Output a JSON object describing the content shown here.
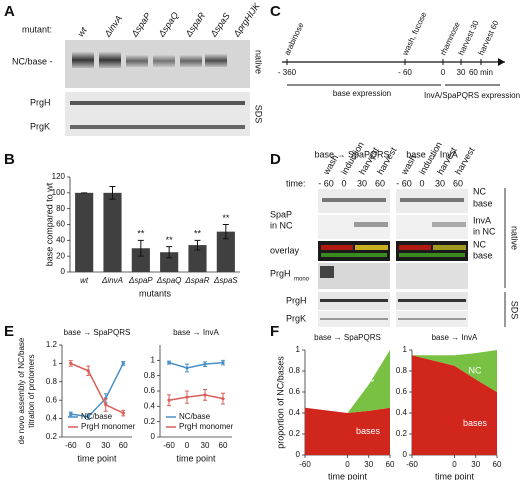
{
  "panels": {
    "a": "A",
    "b": "B",
    "c": "C",
    "d": "D",
    "e": "E",
    "f": "F"
  },
  "panel_a": {
    "mutant_label": "mutant:",
    "lanes": [
      "wt",
      "ΔinvA",
      "ΔspaP",
      "ΔspaQ",
      "ΔspaR",
      "ΔspaS",
      "ΔprgHIJK"
    ],
    "band_label": "NC/base -",
    "blots": [
      "PrgH",
      "PrgK"
    ],
    "gel_labels": [
      "native",
      "SDS"
    ]
  },
  "panel_c": {
    "timeline": [
      {
        "time": "- 360",
        "event": "arabinose"
      },
      {
        "time": "- 60",
        "event": "wash, fucose"
      },
      {
        "time": "0",
        "event": "rhamnose"
      },
      {
        "time": "30",
        "event": "harvest 30"
      },
      {
        "time": "60 min",
        "event": "harvest 60"
      }
    ],
    "phases": [
      "base expression",
      "InvA/SpaPQRS expression"
    ]
  },
  "panel_d": {
    "titles": [
      "base → SpaPQRS",
      "base → InvA"
    ],
    "lanes": [
      "wash",
      "induction",
      "harvest",
      "harvest"
    ],
    "time_label": "time:",
    "times": [
      "- 60",
      "0",
      "30",
      "60"
    ],
    "left_labels": [
      "SpaP",
      "in NC",
      "overlay",
      "PrgH",
      "mono",
      "PrgH",
      "PrgK"
    ],
    "right_labels": [
      "NC",
      "base",
      "InvA",
      "in NC",
      "NC",
      "base"
    ],
    "gel_labels": [
      "native",
      "SDS"
    ]
  },
  "chart_data": [
    {
      "type": "bar",
      "ylabel": "base compared to wt",
      "xlabel": "mutants",
      "categories": [
        "wt",
        "ΔinvA",
        "ΔspaP",
        "ΔspaQ",
        "ΔspaR",
        "ΔspaS"
      ],
      "values": [
        100,
        100,
        30,
        25,
        34,
        51
      ],
      "errors": [
        0,
        8,
        10,
        7,
        6,
        9
      ],
      "significance": [
        null,
        null,
        "**",
        "**",
        "**",
        "**"
      ],
      "color": "#404040",
      "ylim": [
        0,
        120
      ],
      "yticks": [
        0,
        20,
        40,
        60,
        80,
        100,
        120
      ]
    },
    {
      "type": "line",
      "title": "base → SpaPQRS",
      "ylabel": [
        "de novo assembly of NC/base",
        "titration of protomers"
      ],
      "xlabel": "time point",
      "categories": [
        "-60",
        "0",
        "30",
        "60"
      ],
      "ylim": [
        0.2,
        1.2
      ],
      "yticks": [
        0.2,
        0.4,
        0.6,
        0.8,
        1,
        1.2
      ],
      "series": [
        {
          "name": "NC/base",
          "color": "#4a90c8",
          "values": [
            0.45,
            0.42,
            0.62,
            1.0
          ],
          "errors": [
            0.02,
            0.03,
            0.05,
            0.02
          ]
        },
        {
          "name": "PrgH monomer",
          "color": "#d9605a",
          "values": [
            1.0,
            0.92,
            0.55,
            0.46
          ],
          "errors": [
            0.03,
            0.05,
            0.07,
            0.03
          ]
        }
      ]
    },
    {
      "type": "line",
      "title": "base → InvA",
      "xlabel": "time point",
      "categories": [
        "-60",
        "0",
        "30",
        "60"
      ],
      "ylim": [
        0,
        1.2
      ],
      "yticks": [
        0,
        0.2,
        0.4,
        0.6,
        0.8,
        1
      ],
      "series": [
        {
          "name": "NC/base",
          "color": "#4a90c8",
          "values": [
            0.97,
            0.9,
            0.95,
            0.97
          ],
          "errors": [
            0.02,
            0.05,
            0.03,
            0.03
          ]
        },
        {
          "name": "PrgH monomer",
          "color": "#d9605a",
          "values": [
            0.48,
            0.52,
            0.55,
            0.5
          ],
          "errors": [
            0.07,
            0.08,
            0.07,
            0.07
          ]
        }
      ]
    },
    {
      "type": "area",
      "title": "base → SpaPQRS",
      "ylabel": "proportion of NC/bases",
      "xlabel": "time point",
      "x": [
        -60,
        0,
        30,
        60
      ],
      "xlim": [
        -60,
        60
      ],
      "xticks": [
        -60,
        0,
        30,
        60
      ],
      "ylim": [
        0,
        1
      ],
      "yticks": [
        0,
        0.2,
        0.4,
        0.6,
        0.8,
        1
      ],
      "series": [
        {
          "name": "bases",
          "color": "#d1261c",
          "values": [
            0.45,
            0.4,
            0.42,
            0.45
          ]
        },
        {
          "name": "NC",
          "color": "#79c143",
          "values": [
            0,
            0,
            0.25,
            0.55
          ]
        }
      ]
    },
    {
      "type": "area",
      "title": "base → InvA",
      "xlabel": "time point",
      "x": [
        -60,
        0,
        30,
        60
      ],
      "xlim": [
        -60,
        60
      ],
      "xticks": [
        -60,
        0,
        30,
        60
      ],
      "ylim": [
        0,
        1
      ],
      "yticks": [
        0,
        0.2,
        0.4,
        0.6,
        0.8,
        1
      ],
      "series": [
        {
          "name": "bases",
          "color": "#d1261c",
          "values": [
            0.95,
            0.85,
            0.72,
            0.6
          ]
        },
        {
          "name": "NC",
          "color": "#79c143",
          "values": [
            0,
            0.1,
            0.25,
            0.4
          ]
        }
      ]
    }
  ]
}
